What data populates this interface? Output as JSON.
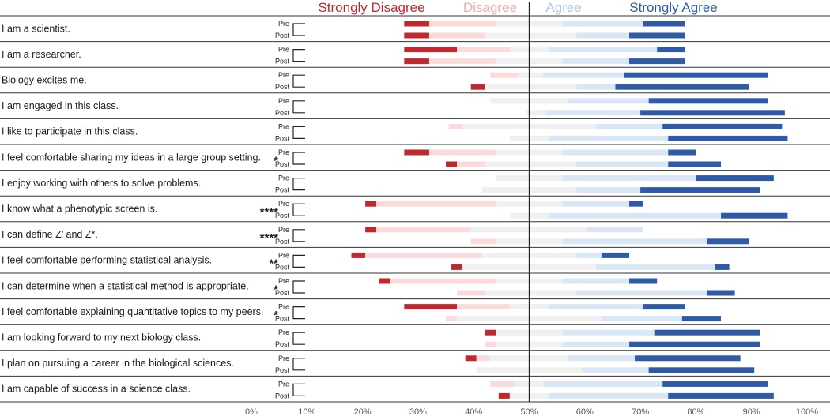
{
  "chart_data": {
    "type": "bar",
    "subtype": "diverging-stacked-likert",
    "legend": [
      {
        "label": "Strongly Disagree",
        "color": "#c0282d"
      },
      {
        "label": "Disagree",
        "color": "#f2a8aa"
      },
      {
        "label": "Agree",
        "color": "#a9c8ea"
      },
      {
        "label": "Strongly Agree",
        "color": "#2e5aa8"
      }
    ],
    "series_colors": {
      "strongly_disagree": "#c0282d",
      "disagree": "#fbdadb",
      "neutral": "#f0f0f0",
      "agree": "#d8e6f5",
      "strongly_agree": "#2e5aa8"
    },
    "xaxis": {
      "range": [
        0,
        100
      ],
      "ticks": [
        "0%",
        "10%",
        "20%",
        "30%",
        "40%",
        "50%",
        "60%",
        "70%",
        "80%",
        "90%",
        "100%"
      ],
      "midline": 50
    },
    "pre_label": "Pre",
    "post_label": "Post",
    "segment_order": [
      "strongly_disagree",
      "disagree",
      "neutral",
      "agree",
      "strongly_agree"
    ],
    "items": [
      {
        "statement": "I am a scientist.",
        "sig": "",
        "pre": [
          27.5,
          32,
          44,
          56,
          70.5,
          78
        ],
        "post": [
          27.5,
          32,
          42,
          58.5,
          68,
          78
        ]
      },
      {
        "statement": "I am a researcher.",
        "sig": "",
        "pre": [
          27.5,
          37,
          46.5,
          53.5,
          73,
          78
        ],
        "post": [
          27.5,
          32,
          44,
          56,
          68,
          78
        ]
      },
      {
        "statement": "Biology excites me.",
        "sig": "",
        "pre": [
          43,
          43,
          48,
          52.5,
          67,
          93
        ],
        "post": [
          39.5,
          42,
          42,
          58.5,
          65.5,
          89.5
        ]
      },
      {
        "statement": "I am engaged in this class.",
        "sig": "",
        "pre": [
          43,
          43,
          43,
          57,
          71.5,
          93
        ],
        "post": [
          49.5,
          49.5,
          49.5,
          53,
          70,
          96
        ]
      },
      {
        "statement": "I like to participate in this class.",
        "sig": "",
        "pre": [
          35.5,
          35.5,
          38,
          62,
          74,
          95.5
        ],
        "post": [
          46.5,
          46.5,
          46.5,
          53.5,
          75,
          96.5
        ]
      },
      {
        "statement": "I feel comfortable sharing my ideas in a large group setting.",
        "sig": "*",
        "pre": [
          27.5,
          32,
          44,
          56,
          75,
          80
        ],
        "post": [
          35,
          37,
          42,
          58.5,
          75,
          84.5
        ]
      },
      {
        "statement": "I enjoy working with others to solve problems.",
        "sig": "",
        "pre": [
          44,
          44,
          44,
          56,
          80,
          94
        ],
        "post": [
          41.5,
          41.5,
          41.5,
          58.5,
          70,
          91.5
        ]
      },
      {
        "statement": "I know what a phenotypic screen is.",
        "sig": "****",
        "pre": [
          20.5,
          22.5,
          44,
          56,
          68,
          70.5
        ],
        "post": [
          46.5,
          46.5,
          46.5,
          53.5,
          84.5,
          96.5
        ]
      },
      {
        "statement": "I can define Z’ and Z*.",
        "sig": "****",
        "pre": [
          20.5,
          22.5,
          39.5,
          60.5,
          70.5,
          70.5
        ],
        "post": [
          39.5,
          39.5,
          44,
          56,
          82,
          89.5
        ]
      },
      {
        "statement": "I feel comfortable performing statistical analysis.",
        "sig": "**",
        "pre": [
          18,
          20.5,
          41.5,
          58.5,
          63,
          68
        ],
        "post": [
          36,
          38,
          38,
          62,
          83.5,
          86
        ]
      },
      {
        "statement": "I can determine when a statistical method is appropriate.",
        "sig": "*",
        "pre": [
          23,
          25,
          44,
          56,
          68,
          73
        ],
        "post": [
          37,
          37,
          42,
          58.5,
          82,
          87
        ]
      },
      {
        "statement": "I feel comfortable explaining quantitative topics to my peers.",
        "sig": "*",
        "pre": [
          27.5,
          37,
          46.5,
          53.5,
          70.5,
          78
        ],
        "post": [
          35,
          35,
          37,
          63,
          77.5,
          84.5
        ]
      },
      {
        "statement": "I am looking forward to my next biology class.",
        "sig": "",
        "pre": [
          42,
          44,
          44,
          56,
          72.5,
          91.5
        ],
        "post": [
          42,
          42,
          44,
          56,
          68,
          91.5
        ]
      },
      {
        "statement": "I plan on pursuing a career in the biological sciences.",
        "sig": "",
        "pre": [
          38.5,
          40.5,
          43,
          57,
          69,
          88
        ],
        "post": [
          40.5,
          40.5,
          40.5,
          59.5,
          71.5,
          90.5
        ]
      },
      {
        "statement": "I am capable of success in a science class.",
        "sig": "",
        "pre": [
          43,
          43,
          47.5,
          52.5,
          74,
          93
        ],
        "post": [
          44.5,
          46.5,
          46.5,
          53.5,
          75,
          94
        ]
      }
    ]
  }
}
